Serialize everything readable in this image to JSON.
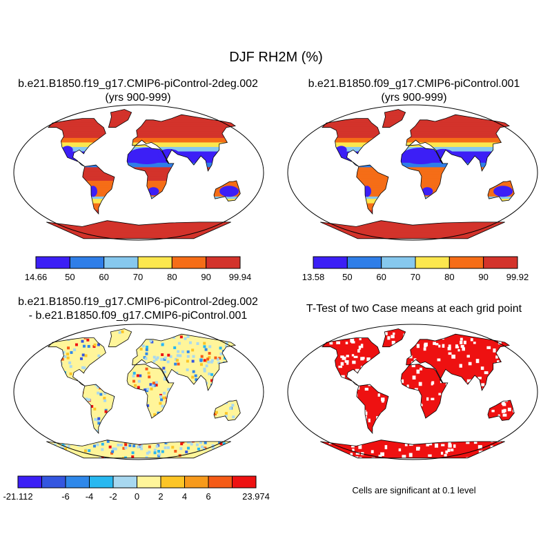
{
  "title": "DJF RH2M (%)",
  "panels": {
    "top_left": {
      "title_line1": "b.e21.B1850.f19_g17.CMIP6-piControl-2deg.002",
      "title_line2": "(yrs 900-999)"
    },
    "top_right": {
      "title_line1": "b.e21.B1850.f09_g17.CMIP6-piControl.001",
      "title_line2": "(yrs 900-999)"
    },
    "bottom_left": {
      "title_line1": "b.e21.B1850.f19_g17.CMIP6-piControl-2deg.002",
      "title_line2": "- b.e21.B1850.f09_g17.CMIP6-piControl.001"
    },
    "bottom_right": {
      "title_line1": "T-Test of two Case means at each grid point",
      "note": "Cells are significant at 0.1 level"
    }
  },
  "colorbars": {
    "top_left": {
      "labels": [
        "14.66",
        "50",
        "60",
        "70",
        "80",
        "90",
        "99.94"
      ],
      "colors": [
        "#3c1ff6",
        "#2f7ee8",
        "#86c8ee",
        "#fce74e",
        "#f56d17",
        "#d3332b"
      ]
    },
    "top_right": {
      "labels": [
        "13.58",
        "50",
        "60",
        "70",
        "80",
        "90",
        "99.92"
      ],
      "colors": [
        "#3c1ff6",
        "#2f7ee8",
        "#86c8ee",
        "#fce74e",
        "#f56d17",
        "#d3332b"
      ]
    },
    "bottom_left": {
      "labels": [
        "-21.112",
        "",
        "-6",
        "-4",
        "-2",
        "0",
        "2",
        "4",
        "6",
        "",
        "23.974"
      ],
      "colors": [
        "#3c1ff6",
        "#3456e0",
        "#2f88ea",
        "#28b8f0",
        "#a8d8f0",
        "#fff59a",
        "#fcc526",
        "#f79a1c",
        "#f55b17",
        "#ee1212"
      ]
    }
  },
  "map_colors": {
    "ocean": "#ffffff",
    "arctic": "#d3332b",
    "diff_positive": "#f55b17",
    "diff_negative": "#2f7ee8",
    "significant": "#ee1111"
  }
}
